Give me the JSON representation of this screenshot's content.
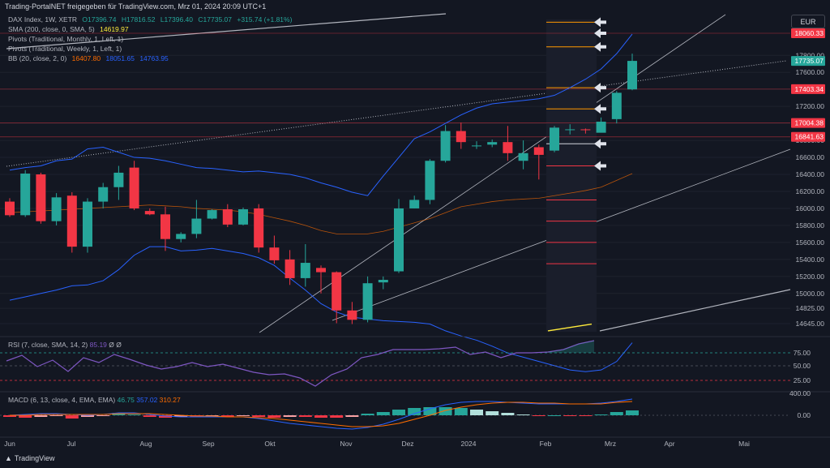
{
  "header": {
    "title": "Trading-PortalNET freigegeben für TradingView.com, Mrz 01, 2024 20:09 UTC+1",
    "currency": "EUR"
  },
  "legend": {
    "symbol": "DAX Index, 1W, XETR",
    "o": "O17396.74",
    "h": "H17816.52",
    "l": "L17396.40",
    "c": "C17735.07",
    "chg": "+315.74 (+1.81%)",
    "sma_label": "SMA (200, close, 0, SMA, 5)",
    "sma_value": "14619.97",
    "pivot_monthly": "Pivots (Traditional, Monthly, 1, Left, 1)",
    "pivot_weekly": "Pivots (Traditional, Weekly, 1, Left, 1)",
    "bb_label": "BB (20, close, 2, 0)",
    "bb_basis": "16407.80",
    "bb_upper": "18051.65",
    "bb_lower": "14763.95"
  },
  "rsi": {
    "label": "RSI (7, close, SMA, 14, 2)",
    "value": "85.19",
    "extra1": "Ø",
    "extra2": "Ø",
    "ticks": [
      "75.00",
      "50.00",
      "25.00"
    ]
  },
  "macd": {
    "label": "MACD (6, 13, close, 4, EMA, EMA)",
    "hist": "46.75",
    "macd": "357.02",
    "signal": "310.27",
    "ticks": [
      "400.00",
      "0.00"
    ]
  },
  "footer": {
    "brand": "TradingView"
  },
  "colors": {
    "up": "#26a69a",
    "down": "#f23645",
    "bb": "#2962ff",
    "bb_basis": "#ff6d00",
    "rsi": "#7e57c2",
    "macd": "#2962ff",
    "signal": "#ff6d00",
    "bg": "#131722"
  },
  "chart_data": {
    "type": "candlestick",
    "price_ticks": [
      "17800.00",
      "17600.00",
      "17400.00",
      "17200.00",
      "17000.00",
      "16800.00",
      "16600.00",
      "16400.00",
      "16200.00",
      "16000.00",
      "15800.00",
      "15600.00",
      "15400.00",
      "15200.00",
      "15000.00",
      "14825.00",
      "14645.00"
    ],
    "price_labels": [
      {
        "text": "18060.33",
        "value": 18060.33,
        "color": "#f23645"
      },
      {
        "text": "17735.07",
        "value": 17735.07,
        "color": "#26a69a"
      },
      {
        "text": "17403.34",
        "value": 17403.34,
        "color": "#f23645"
      },
      {
        "text": "17004.38",
        "value": 17004.38,
        "color": "#f23645"
      },
      {
        "text": "16841.63",
        "value": 16841.63,
        "color": "#f23645"
      }
    ],
    "x_labels": [
      "Jun",
      "Jul",
      "Aug",
      "Sep",
      "Okt",
      "Nov",
      "Dez",
      "2024",
      "Feb",
      "Mrz",
      "Apr",
      "Mai"
    ],
    "candles": [
      [
        16080,
        16120,
        15900,
        15920
      ],
      [
        15920,
        16450,
        15900,
        16410
      ],
      [
        16400,
        16420,
        15820,
        15850
      ],
      [
        15850,
        16180,
        15800,
        16130
      ],
      [
        16150,
        16190,
        15480,
        15550
      ],
      [
        15550,
        16120,
        15480,
        16080
      ],
      [
        16080,
        16300,
        16000,
        16250
      ],
      [
        16250,
        16500,
        16100,
        16420
      ],
      [
        16480,
        16560,
        15980,
        16000
      ],
      [
        15970,
        16000,
        15920,
        15930
      ],
      [
        15930,
        16020,
        15500,
        15640
      ],
      [
        15640,
        15720,
        15600,
        15700
      ],
      [
        15700,
        16100,
        15650,
        15880
      ],
      [
        15880,
        15990,
        15870,
        15980
      ],
      [
        15990,
        16050,
        15780,
        15810
      ],
      [
        15810,
        16010,
        15800,
        15990
      ],
      [
        16000,
        16050,
        15480,
        15540
      ],
      [
        15540,
        15680,
        15350,
        15390
      ],
      [
        15400,
        15510,
        15100,
        15180
      ],
      [
        15180,
        15580,
        15080,
        15360
      ],
      [
        15300,
        15330,
        15000,
        15250
      ],
      [
        15250,
        15260,
        14650,
        14800
      ],
      [
        14800,
        14900,
        14640,
        14690
      ],
      [
        14690,
        15200,
        14660,
        15120
      ],
      [
        15130,
        15200,
        15050,
        15160
      ],
      [
        15260,
        16110,
        15240,
        16000
      ],
      [
        16000,
        16150,
        16000,
        16100
      ],
      [
        16100,
        16580,
        16050,
        16560
      ],
      [
        16560,
        16980,
        16540,
        16910
      ],
      [
        16910,
        17010,
        16700,
        16780
      ],
      [
        16730,
        16790,
        16700,
        16740
      ],
      [
        16750,
        16810,
        16720,
        16780
      ],
      [
        16780,
        16970,
        16560,
        16650
      ],
      [
        16560,
        16800,
        16460,
        16650
      ],
      [
        16720,
        16750,
        16340,
        16630
      ],
      [
        16680,
        16970,
        16660,
        16950
      ],
      [
        16930,
        16990,
        16870,
        16930
      ],
      [
        16930,
        16940,
        16880,
        16920
      ],
      [
        16890,
        17070,
        16900,
        17020
      ],
      [
        17050,
        17380,
        17000,
        17360
      ],
      [
        17400,
        17820,
        17390,
        17735
      ]
    ]
  }
}
